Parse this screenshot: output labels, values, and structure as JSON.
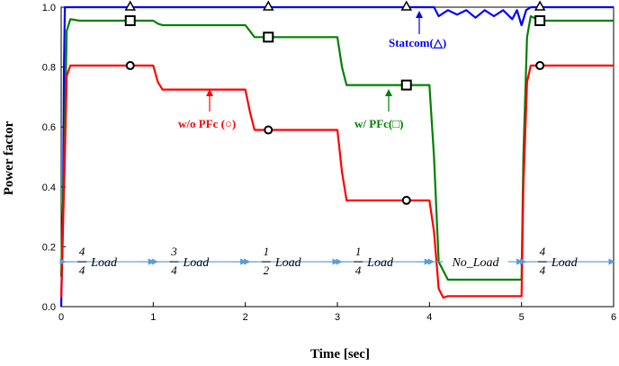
{
  "chart_data": {
    "type": "line",
    "xlabel": "Time [sec]",
    "ylabel": "Power factor",
    "xlim": [
      0,
      6
    ],
    "ylim": [
      0,
      1.0
    ],
    "x_ticks": [
      "0",
      "1",
      "2",
      "3",
      "4",
      "5",
      "6"
    ],
    "y_ticks": [
      "0.0",
      "0.2",
      "0.4",
      "0.6",
      "0.8",
      "1.0"
    ],
    "grid": false,
    "series": [
      {
        "name": "Statcom(△)",
        "color": "#0000ff",
        "marker": "triangle",
        "x": [
          0,
          0.02,
          0.03,
          0.04,
          4.05,
          4.1,
          4.2,
          4.3,
          4.4,
          4.5,
          4.6,
          4.7,
          4.8,
          4.9,
          4.95,
          5.0,
          5.05,
          5.1,
          6.0
        ],
        "y": [
          0.0,
          0.3,
          0.8,
          1.0,
          1.0,
          0.97,
          0.99,
          0.975,
          0.99,
          0.965,
          0.99,
          0.97,
          0.99,
          0.96,
          0.99,
          0.94,
          0.99,
          1.0,
          1.0
        ],
        "markers_x": [
          0.75,
          2.25,
          3.75,
          5.2
        ],
        "markers_y": [
          1.0,
          1.0,
          1.0,
          1.0
        ]
      },
      {
        "name": "w/ PFc(□)",
        "color": "#008000",
        "marker": "square",
        "x": [
          0,
          0.04,
          0.06,
          0.1,
          0.2,
          1.0,
          1.05,
          1.1,
          2.0,
          2.05,
          2.1,
          3.0,
          3.05,
          3.1,
          4.0,
          4.05,
          4.1,
          4.2,
          5.0,
          5.02,
          5.06,
          5.1,
          5.2,
          6.0
        ],
        "y": [
          0.1,
          0.6,
          0.92,
          0.96,
          0.955,
          0.955,
          0.945,
          0.94,
          0.94,
          0.92,
          0.9,
          0.9,
          0.8,
          0.74,
          0.74,
          0.5,
          0.15,
          0.09,
          0.09,
          0.5,
          0.9,
          0.97,
          0.955,
          0.955
        ],
        "markers_x": [
          0.75,
          2.25,
          3.75,
          5.2
        ],
        "markers_y": [
          0.955,
          0.9,
          0.74,
          0.955
        ]
      },
      {
        "name": "w/o PFc (○)",
        "color": "#ff0000",
        "marker": "circle",
        "x": [
          0,
          0.04,
          0.06,
          0.1,
          1.0,
          1.05,
          1.1,
          2.0,
          2.05,
          2.1,
          3.0,
          3.05,
          3.1,
          4.0,
          4.05,
          4.1,
          4.15,
          4.2,
          5.0,
          5.02,
          5.06,
          5.1,
          6.0
        ],
        "y": [
          0.03,
          0.5,
          0.77,
          0.805,
          0.805,
          0.75,
          0.725,
          0.725,
          0.65,
          0.59,
          0.59,
          0.45,
          0.355,
          0.355,
          0.25,
          0.06,
          0.03,
          0.035,
          0.035,
          0.4,
          0.75,
          0.805,
          0.805
        ],
        "markers_x": [
          0.75,
          2.25,
          3.75,
          5.2
        ],
        "markers_y": [
          0.805,
          0.59,
          0.355,
          0.805
        ]
      }
    ],
    "annotations": {
      "statcom": "Statcom(△)",
      "wo_pfc": "w/o PFc (○)",
      "w_pfc": "w/ PFc(□)"
    },
    "load_segments": [
      {
        "num": "4",
        "den": "4",
        "word": "Load",
        "x_start": 0,
        "x_end": 1
      },
      {
        "num": "3",
        "den": "4",
        "word": "Load",
        "x_start": 1,
        "x_end": 2
      },
      {
        "num": "1",
        "den": "2",
        "word": "Load",
        "x_start": 2,
        "x_end": 3
      },
      {
        "num": "1",
        "den": "4",
        "word": "Load",
        "x_start": 3,
        "x_end": 4
      },
      {
        "num": "",
        "den": "",
        "word": "No_Load",
        "x_start": 4,
        "x_end": 5
      },
      {
        "num": "4",
        "den": "4",
        "word": "Load",
        "x_start": 5,
        "x_end": 6
      }
    ],
    "load_arrow_y": 0.15
  }
}
